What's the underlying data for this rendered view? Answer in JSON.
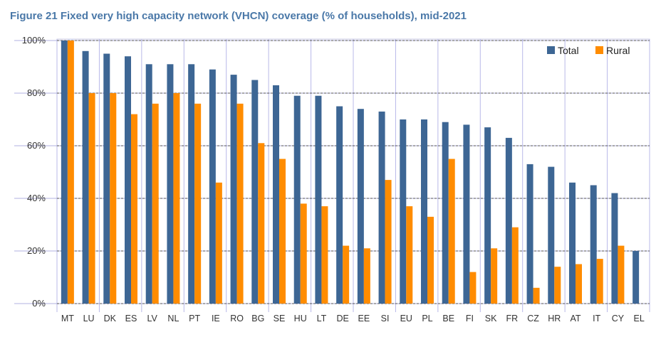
{
  "chart_data": {
    "type": "bar",
    "title": "Figure 21 Fixed very high capacity network (VHCN) coverage (% of households), mid-2021",
    "xlabel": "",
    "ylabel": "",
    "ylim": [
      0,
      100
    ],
    "yticks": [
      "0%",
      "20%",
      "40%",
      "60%",
      "80%",
      "100%"
    ],
    "grid": true,
    "legend_position": "top-right",
    "categories": [
      "MT",
      "LU",
      "DK",
      "ES",
      "LV",
      "NL",
      "PT",
      "IE",
      "RO",
      "BG",
      "SE",
      "HU",
      "LT",
      "DE",
      "EE",
      "SI",
      "EU",
      "PL",
      "BE",
      "FI",
      "SK",
      "FR",
      "CZ",
      "HR",
      "AT",
      "IT",
      "CY",
      "EL"
    ],
    "series": [
      {
        "name": "Total",
        "color": "#3d6694",
        "values": [
          100,
          96,
          95,
          94,
          91,
          91,
          91,
          89,
          87,
          85,
          83,
          79,
          79,
          75,
          74,
          73,
          70,
          70,
          69,
          68,
          67,
          63,
          53,
          52,
          46,
          45,
          42,
          20
        ]
      },
      {
        "name": "Rural",
        "color": "#ff8c00",
        "values": [
          100,
          80,
          80,
          72,
          76,
          80,
          76,
          46,
          76,
          61,
          55,
          38,
          37,
          22,
          21,
          47,
          37,
          33,
          55,
          12,
          21,
          29,
          6,
          14,
          15,
          17,
          22,
          0
        ]
      }
    ]
  }
}
